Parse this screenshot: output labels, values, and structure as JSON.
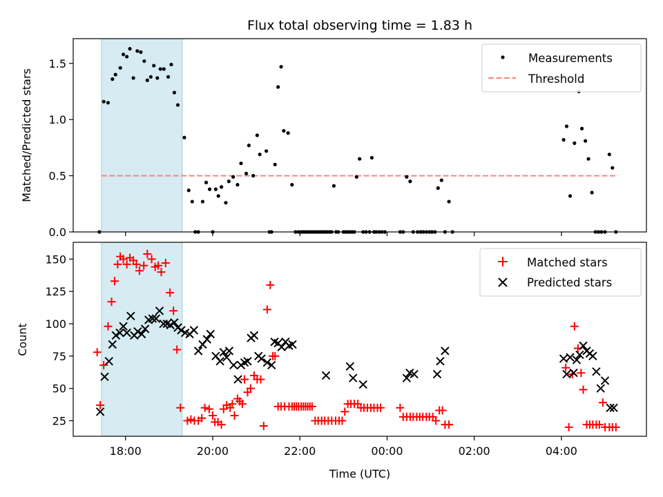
{
  "chart_data": [
    {
      "type": "scatter",
      "title": "Flux total observing time = 1.83 h",
      "xlabel": "",
      "ylabel": "Matched/Predicted stars",
      "xlim": [
        16.8,
        29.95
      ],
      "ylim": [
        0,
        1.72
      ],
      "yticks": [
        0.0,
        0.5,
        1.0,
        1.5
      ],
      "ytick_labels": [
        "0.0",
        "0.5",
        "1.0",
        "1.5"
      ],
      "shaded_region": [
        17.45,
        19.3
      ],
      "legend_position": "top-right",
      "legend": [
        {
          "label": "Measurements",
          "marker": "dot",
          "color": "#000000"
        },
        {
          "label": "Threshold",
          "marker": "dashed-line",
          "color": "#ff7f7f"
        }
      ],
      "threshold": {
        "value": 0.5,
        "x_range": [
          17.45,
          29.3
        ]
      },
      "series": [
        {
          "name": "Measurements",
          "color": "#000000",
          "x": [
            17.4,
            17.5,
            17.6,
            17.7,
            17.77,
            17.88,
            17.95,
            18.03,
            18.1,
            18.18,
            18.27,
            18.35,
            18.43,
            18.5,
            18.58,
            18.65,
            18.73,
            18.8,
            18.88,
            18.98,
            19.05,
            19.12,
            19.2,
            19.35,
            19.45,
            19.53,
            19.6,
            19.67,
            19.77,
            19.85,
            19.93,
            20.0,
            20.07,
            20.13,
            20.2,
            20.3,
            20.37,
            20.47,
            20.57,
            20.65,
            20.77,
            20.83,
            20.93,
            21.02,
            21.08,
            21.23,
            21.3,
            21.35,
            21.43,
            21.5,
            21.57,
            21.63,
            21.73,
            21.82,
            21.9,
            21.97,
            22.03,
            22.08,
            22.13,
            22.18,
            22.23,
            22.28,
            22.33,
            22.38,
            22.43,
            22.48,
            22.53,
            22.58,
            22.63,
            22.68,
            22.73,
            22.78,
            22.83,
            22.88,
            23.0,
            23.05,
            23.1,
            23.15,
            23.2,
            23.25,
            23.3,
            23.37,
            23.45,
            23.52,
            23.6,
            23.65,
            23.7,
            23.75,
            23.82,
            23.88,
            23.95,
            24.3,
            24.37,
            24.45,
            24.53,
            24.6,
            24.7,
            24.77,
            24.83,
            24.9,
            24.97,
            25.03,
            25.1,
            25.17,
            25.25,
            25.33,
            25.42,
            25.5,
            28.05,
            28.12,
            28.2,
            28.3,
            28.4,
            28.47,
            28.55,
            28.62,
            28.7,
            28.78,
            28.85,
            28.92,
            29.0,
            29.1,
            29.17,
            29.25
          ],
          "y": [
            0.0,
            1.16,
            1.15,
            1.36,
            1.4,
            1.46,
            1.58,
            1.56,
            1.63,
            1.37,
            1.61,
            1.6,
            1.52,
            1.35,
            1.38,
            1.48,
            1.37,
            1.45,
            1.45,
            1.38,
            1.49,
            1.24,
            1.13,
            0.84,
            0.37,
            0.27,
            0.0,
            0.0,
            0.27,
            0.44,
            0.38,
            0.0,
            0.38,
            0.32,
            0.4,
            0.26,
            0.45,
            0.49,
            0.42,
            0.61,
            0.52,
            0.77,
            0.5,
            0.86,
            0.69,
            0.72,
            0.0,
            0.0,
            0.6,
            1.29,
            1.47,
            0.9,
            0.88,
            0.42,
            0.0,
            0.0,
            0.0,
            0.0,
            0.0,
            0.0,
            0.0,
            0.0,
            0.0,
            0.0,
            0.0,
            0.0,
            0.0,
            0.0,
            0.0,
            0.0,
            0.0,
            0.41,
            0.0,
            0.0,
            0.0,
            0.0,
            0.0,
            0.0,
            0.0,
            0.0,
            0.49,
            0.65,
            0.0,
            0.0,
            0.0,
            0.66,
            0.0,
            0.0,
            0.0,
            0.0,
            0.0,
            0.0,
            0.0,
            0.49,
            0.45,
            0.0,
            0.0,
            0.0,
            0.0,
            0.0,
            0.0,
            0.0,
            0.0,
            0.39,
            0.46,
            0.0,
            0.27,
            0.0,
            0.82,
            0.94,
            0.32,
            0.79,
            1.25,
            0.92,
            0.81,
            0.65,
            0.35,
            0.0,
            0.0,
            0.0,
            0.0,
            0.69,
            0.57,
            0.0
          ]
        }
      ]
    },
    {
      "type": "scatter",
      "title": "",
      "xlabel": "Time (UTC)",
      "ylabel": "Count",
      "xlim": [
        16.8,
        29.95
      ],
      "ylim": [
        13,
        163
      ],
      "yticks": [
        25,
        50,
        75,
        100,
        125,
        150
      ],
      "ytick_labels": [
        "25",
        "50",
        "75",
        "100",
        "125",
        "150"
      ],
      "xticks": [
        18,
        20,
        22,
        24,
        26,
        28
      ],
      "xtick_labels": [
        "18:00",
        "20:00",
        "22:00",
        "00:00",
        "02:00",
        "04:00"
      ],
      "shaded_region": [
        17.45,
        19.3
      ],
      "legend_position": "top-right",
      "legend": [
        {
          "label": "Matched stars",
          "marker": "plus",
          "color": "#ff0000"
        },
        {
          "label": "Predicted stars",
          "marker": "x",
          "color": "#000000"
        }
      ],
      "series": [
        {
          "name": "Matched stars",
          "marker": "plus",
          "color": "#ff0000",
          "x": [
            17.35,
            17.42,
            17.5,
            17.6,
            17.68,
            17.75,
            17.82,
            17.88,
            17.95,
            18.03,
            18.1,
            18.18,
            18.25,
            18.32,
            18.42,
            18.5,
            18.6,
            18.68,
            18.75,
            18.82,
            18.92,
            19.02,
            19.1,
            19.18,
            19.26,
            19.42,
            19.5,
            19.58,
            19.67,
            19.75,
            19.82,
            19.92,
            20.0,
            20.05,
            20.12,
            20.2,
            20.25,
            20.32,
            20.4,
            20.45,
            20.5,
            20.57,
            20.62,
            20.68,
            20.73,
            20.8,
            20.87,
            20.95,
            21.02,
            21.1,
            21.17,
            21.25,
            21.32,
            21.38,
            21.43,
            21.5,
            21.57,
            21.65,
            21.75,
            21.82,
            21.87,
            21.92,
            21.97,
            22.03,
            22.08,
            22.13,
            22.18,
            22.23,
            22.28,
            22.35,
            22.42,
            22.5,
            22.57,
            22.65,
            22.73,
            22.82,
            22.9,
            22.97,
            23.03,
            23.1,
            23.17,
            23.25,
            23.33,
            23.4,
            23.47,
            23.55,
            23.63,
            23.7,
            23.78,
            23.85,
            24.3,
            24.37,
            24.45,
            24.53,
            24.6,
            24.68,
            24.75,
            24.82,
            24.9,
            24.97,
            25.05,
            25.12,
            25.2,
            25.27,
            25.33,
            25.42,
            28.1,
            28.17,
            28.25,
            28.3,
            28.38,
            28.45,
            28.5,
            28.58,
            28.65,
            28.72,
            28.8,
            28.87,
            28.95,
            29.0,
            29.1,
            29.17,
            29.25
          ],
          "y": [
            78,
            37,
            68,
            98,
            117,
            133,
            146,
            152,
            150,
            146,
            151,
            149,
            146,
            141,
            145,
            154,
            150,
            144,
            145,
            140,
            147,
            124,
            110,
            80,
            35,
            25,
            26,
            25,
            25,
            27,
            35,
            34,
            29,
            24,
            24,
            22,
            34,
            37,
            35,
            38,
            29,
            42,
            40,
            38,
            57,
            47,
            50,
            60,
            57,
            57,
            21,
            111,
            130,
            75,
            75,
            36,
            36,
            36,
            36,
            36,
            36,
            36,
            36,
            36,
            36,
            36,
            36,
            36,
            36,
            25,
            25,
            25,
            25,
            25,
            25,
            25,
            25,
            25,
            32,
            38,
            38,
            38,
            38,
            35,
            35,
            35,
            35,
            35,
            35,
            35,
            35,
            28,
            28,
            28,
            28,
            28,
            28,
            28,
            28,
            28,
            28,
            25,
            33,
            33,
            22,
            22,
            66,
            20,
            61,
            98,
            81,
            62,
            49,
            22,
            22,
            22,
            22,
            22,
            39,
            20,
            20,
            20,
            20
          ]
        },
        {
          "name": "Predicted stars",
          "marker": "x",
          "color": "#000000",
          "x": [
            17.42,
            17.52,
            17.62,
            17.7,
            17.78,
            17.87,
            17.95,
            18.03,
            18.12,
            18.2,
            18.28,
            18.37,
            18.45,
            18.53,
            18.62,
            18.7,
            18.78,
            18.87,
            18.95,
            19.03,
            19.12,
            19.2,
            19.28,
            19.37,
            19.47,
            19.57,
            19.67,
            19.77,
            19.87,
            19.95,
            20.07,
            20.17,
            20.25,
            20.32,
            20.38,
            20.48,
            20.58,
            20.65,
            20.73,
            20.8,
            20.88,
            20.95,
            21.05,
            21.12,
            21.25,
            21.35,
            21.42,
            21.5,
            21.58,
            21.67,
            21.75,
            21.83,
            22.6,
            23.15,
            23.22,
            23.45,
            24.45,
            24.52,
            24.62,
            25.15,
            25.22,
            25.33,
            28.05,
            28.12,
            28.2,
            28.28,
            28.35,
            28.42,
            28.5,
            28.58,
            28.65,
            28.72,
            28.8,
            28.9,
            29.0,
            29.12,
            29.2
          ],
          "y": [
            32,
            59,
            71,
            84,
            91,
            93,
            98,
            93,
            106,
            91,
            94,
            92,
            96,
            103,
            104,
            104,
            110,
            100,
            100,
            99,
            101,
            97,
            95,
            93,
            92,
            95,
            79,
            84,
            88,
            92,
            75,
            71,
            78,
            74,
            79,
            68,
            57,
            68,
            70,
            71,
            89,
            91,
            75,
            73,
            70,
            68,
            86,
            85,
            82,
            86,
            83,
            84,
            60,
            67,
            58,
            53,
            58,
            62,
            61,
            61,
            71,
            79,
            73,
            61,
            74,
            62,
            72,
            76,
            83,
            79,
            77,
            75,
            63,
            50,
            56,
            35,
            35
          ]
        }
      ]
    }
  ]
}
